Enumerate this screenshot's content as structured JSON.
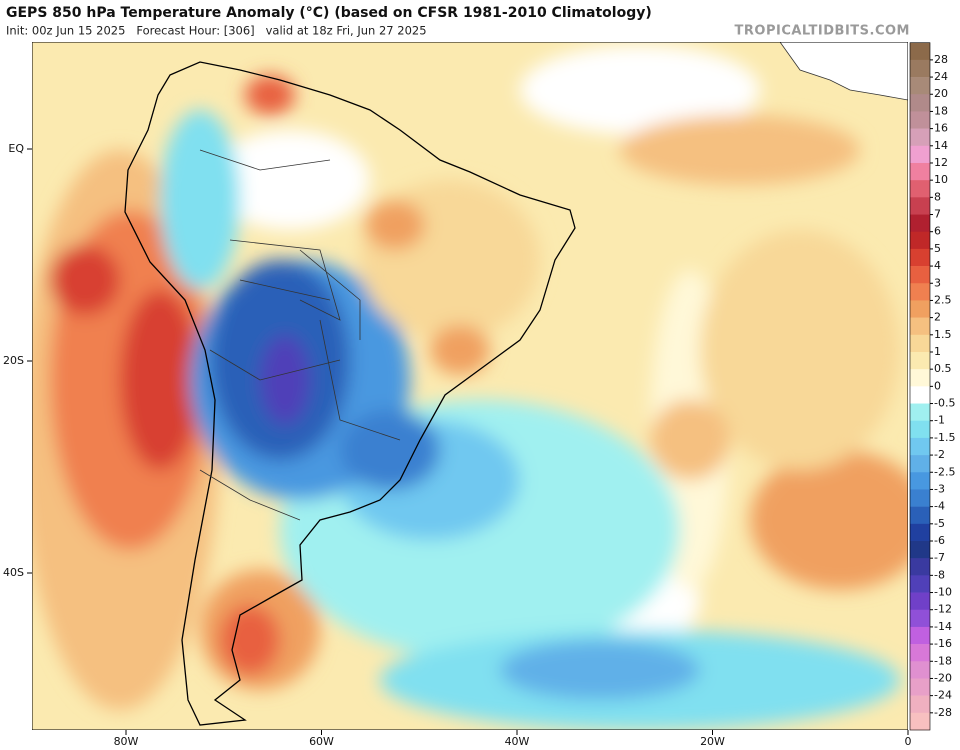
{
  "header": {
    "title": "GEPS 850 hPa Temperature Anomaly (°C) (based on CFSR 1981-2010 Climatology)",
    "subtitle": "Init: 00z Jun 15 2025   Forecast Hour: [306]   valid at 18z Fri, Jun 27 2025",
    "watermark": "TROPICALTIDBITS.COM"
  },
  "map": {
    "lat_labels": [
      "EQ",
      "20S",
      "40S"
    ],
    "lon_labels": [
      "80W",
      "60W",
      "40W",
      "20W",
      "0"
    ]
  },
  "colorbar": {
    "levels": [
      28,
      24,
      20,
      18,
      16,
      14,
      12,
      10,
      8,
      7,
      6,
      5,
      4,
      3,
      2.5,
      2,
      1.5,
      1,
      0.5,
      0,
      -0.5,
      -1,
      -1.5,
      -2,
      -2.5,
      -3,
      -4,
      -5,
      -6,
      -7,
      -8,
      -10,
      -12,
      -14,
      -16,
      -18,
      -20,
      -24,
      -28
    ],
    "colors": [
      "#8c6a4a",
      "#9a7a60",
      "#a88a78",
      "#b08a8a",
      "#c0909a",
      "#d6a0b8",
      "#f0a0d0",
      "#f080a0",
      "#e06070",
      "#c84050",
      "#b02030",
      "#c02828",
      "#d84030",
      "#e86040",
      "#f08050",
      "#f0a060",
      "#f5c080",
      "#f8d898",
      "#fbeab0",
      "#fff8d8",
      "#ffffff",
      "#a0f0f0",
      "#80e0f0",
      "#70c8f0",
      "#60b0e8",
      "#4898e0",
      "#3a80d0",
      "#2a60b8",
      "#2040a0",
      "#203888",
      "#3a3aa0",
      "#5040b8",
      "#7040c8",
      "#9050d8",
      "#c060e0",
      "#d878d8",
      "#e090d0",
      "#e8a0c8",
      "#f0b0c0",
      "#f8c0c0"
    ]
  }
}
